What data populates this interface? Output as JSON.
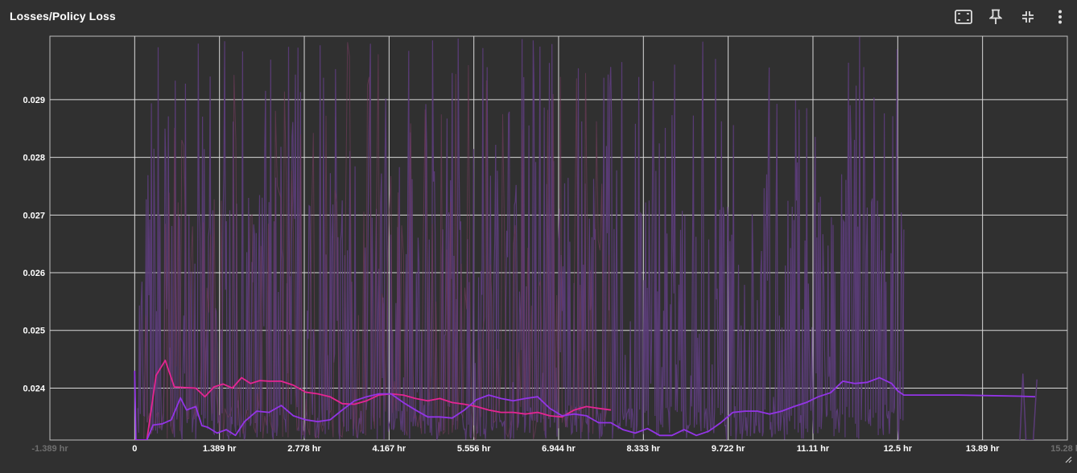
{
  "header": {
    "title": "Losses/Policy Loss"
  },
  "toolbar": {
    "icons": [
      "fit-to-screen-icon",
      "pin-icon",
      "collapse-icon",
      "more-vert-icon"
    ]
  },
  "colors": {
    "background": "#303030",
    "grid": "#d9d9d9",
    "series_magenta": "#e52592",
    "series_purple": "#9334e6",
    "series_purple_raw": "#5b3c78",
    "series_magenta_raw": "#6e3a5a"
  },
  "chart_data": {
    "type": "line",
    "title": "Losses/Policy Loss",
    "xlabel": "",
    "ylabel": "",
    "x_unit": "hr",
    "xlim": [
      -1.389,
      15.278
    ],
    "ylim": [
      0.0231,
      0.0301
    ],
    "y_ticks": [
      0.024,
      0.025,
      0.026,
      0.027,
      0.028,
      0.029
    ],
    "y_tick_labels": [
      "0.024",
      "0.025",
      "0.026",
      "0.027",
      "0.028",
      "0.029"
    ],
    "x_ticks": [
      -1.389,
      0,
      1.389,
      2.778,
      4.167,
      5.556,
      6.944,
      8.333,
      9.722,
      11.111,
      12.5,
      13.889,
      15.278
    ],
    "x_tick_labels": [
      "-1.389 hr",
      "0",
      "1.389 hr",
      "2.778 hr",
      "4.167 hr",
      "5.556 hr",
      "6.944 hr",
      "8.333 hr",
      "9.722 hr",
      "11.11 hr",
      "12.5 hr",
      "13.89 hr",
      "15.28 hr"
    ],
    "grid": true,
    "legend": "none",
    "series": [
      {
        "color": "#e52592",
        "x": [
          0.0,
          0.2,
          0.35,
          0.5,
          0.65,
          0.8,
          1.0,
          1.15,
          1.3,
          1.45,
          1.6,
          1.75,
          1.9,
          2.05,
          2.2,
          2.4,
          2.6,
          2.8,
          3.0,
          3.2,
          3.4,
          3.6,
          3.8,
          4.0,
          4.2,
          4.4,
          4.6,
          4.8,
          5.0,
          5.2,
          5.4,
          5.6,
          5.8,
          6.0,
          6.2,
          6.4,
          6.6,
          6.8,
          7.0,
          7.2,
          7.4,
          7.6,
          7.8
        ],
        "y": [
          0.0231,
          0.0231,
          0.02422,
          0.02448,
          0.02402,
          0.02401,
          0.024,
          0.02385,
          0.02402,
          0.02407,
          0.024,
          0.02418,
          0.02408,
          0.02413,
          0.02412,
          0.02412,
          0.02405,
          0.02393,
          0.0239,
          0.02385,
          0.02373,
          0.02372,
          0.02378,
          0.02388,
          0.0239,
          0.02388,
          0.02382,
          0.02378,
          0.02382,
          0.02375,
          0.02372,
          0.02368,
          0.02362,
          0.02358,
          0.02358,
          0.02355,
          0.02358,
          0.02352,
          0.0235,
          0.02362,
          0.02368,
          0.02365,
          0.02362
        ]
      },
      {
        "color": "#9334e6",
        "x": [
          0.0,
          0.02,
          0.2,
          0.3,
          0.45,
          0.6,
          0.75,
          0.85,
          1.0,
          1.1,
          1.2,
          1.35,
          1.5,
          1.65,
          1.8,
          2.0,
          2.2,
          2.4,
          2.6,
          2.8,
          3.0,
          3.2,
          3.4,
          3.6,
          3.8,
          4.0,
          4.2,
          4.4,
          4.6,
          4.8,
          5.0,
          5.2,
          5.4,
          5.6,
          5.8,
          6.0,
          6.2,
          6.4,
          6.6,
          6.8,
          7.0,
          7.2,
          7.4,
          7.6,
          7.8,
          8.0,
          8.2,
          8.4,
          8.6,
          8.8,
          9.0,
          9.2,
          9.4,
          9.6,
          9.8,
          10.0,
          10.2,
          10.4,
          10.6,
          10.8,
          11.0,
          11.2,
          11.4,
          11.6,
          11.8,
          12.0,
          12.2,
          12.4,
          12.5,
          12.6,
          13.0,
          13.5,
          14.0,
          14.5,
          14.75
        ],
        "y": [
          0.0243,
          0.0231,
          0.0231,
          0.02336,
          0.02338,
          0.02345,
          0.02383,
          0.02362,
          0.02368,
          0.02335,
          0.02332,
          0.02322,
          0.02328,
          0.02318,
          0.02342,
          0.0236,
          0.02358,
          0.0237,
          0.02352,
          0.02345,
          0.02342,
          0.02345,
          0.02362,
          0.02378,
          0.02385,
          0.0239,
          0.0239,
          0.02375,
          0.02362,
          0.0235,
          0.0235,
          0.02348,
          0.02362,
          0.0238,
          0.02388,
          0.02382,
          0.02378,
          0.02382,
          0.02385,
          0.02365,
          0.02352,
          0.02355,
          0.02352,
          0.0234,
          0.0234,
          0.02328,
          0.02322,
          0.0233,
          0.02318,
          0.02318,
          0.02328,
          0.02318,
          0.02325,
          0.0234,
          0.02358,
          0.0236,
          0.0236,
          0.02355,
          0.0236,
          0.02368,
          0.02375,
          0.02385,
          0.02392,
          0.02412,
          0.02408,
          0.0241,
          0.02418,
          0.02408,
          0.02395,
          0.02388,
          0.02388,
          0.02388,
          0.02387,
          0.02386,
          0.02385
        ]
      }
    ]
  }
}
